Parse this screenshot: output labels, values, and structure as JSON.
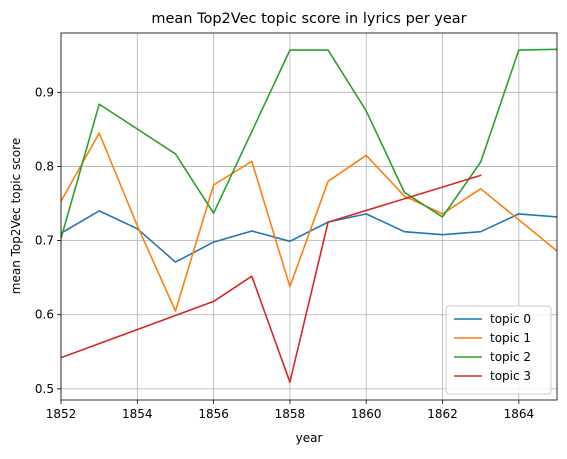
{
  "chart_data": {
    "type": "line",
    "title": "mean Top2Vec topic score in lyrics per year",
    "xlabel": "year",
    "ylabel": "mean Top2Vec topic score",
    "xlim": [
      1852,
      1865
    ],
    "ylim": [
      0.485,
      0.98
    ],
    "xticks": [
      "1852",
      "1854",
      "1856",
      "1858",
      "1860",
      "1862",
      "1864"
    ],
    "yticks": [
      "0.5",
      "0.6",
      "0.7",
      "0.8",
      "0.9"
    ],
    "grid": true,
    "legend_position": "lower right",
    "series": [
      {
        "name": "topic 0",
        "color": "#1f77b4",
        "x": [
          1852,
          1853,
          1854,
          1855,
          1856,
          1857,
          1858,
          1859,
          1860,
          1861,
          1862,
          1863,
          1864,
          1865
        ],
        "y": [
          0.71,
          0.74,
          0.716,
          0.671,
          0.698,
          0.713,
          0.699,
          0.725,
          0.736,
          0.712,
          0.708,
          0.712,
          0.736,
          0.732
        ]
      },
      {
        "name": "topic 1",
        "color": "#ff7f0e",
        "x": [
          1852,
          1853,
          1854,
          1855,
          1856,
          1857,
          1858,
          1859,
          1860,
          1861,
          1862,
          1863,
          1864,
          1865
        ],
        "y": [
          0.753,
          0.845,
          0.72,
          0.605,
          0.775,
          0.807,
          0.638,
          0.78,
          0.815,
          0.76,
          0.736,
          0.77,
          0.728,
          0.686
        ]
      },
      {
        "name": "topic 2",
        "color": "#2ca02c",
        "x": [
          1852,
          1853,
          1855,
          1856,
          1858,
          1859,
          1860,
          1861,
          1862,
          1863,
          1864,
          1865
        ],
        "y": [
          0.703,
          0.884,
          0.817,
          0.737,
          0.957,
          0.957,
          0.875,
          0.765,
          0.732,
          0.806,
          0.957,
          0.958
        ]
      },
      {
        "name": "topic 3",
        "color": "#d62728",
        "x": [
          1852,
          1856,
          1857,
          1858,
          1859,
          1863
        ],
        "y": [
          0.542,
          0.618,
          0.652,
          0.509,
          0.725,
          0.788
        ]
      }
    ]
  }
}
